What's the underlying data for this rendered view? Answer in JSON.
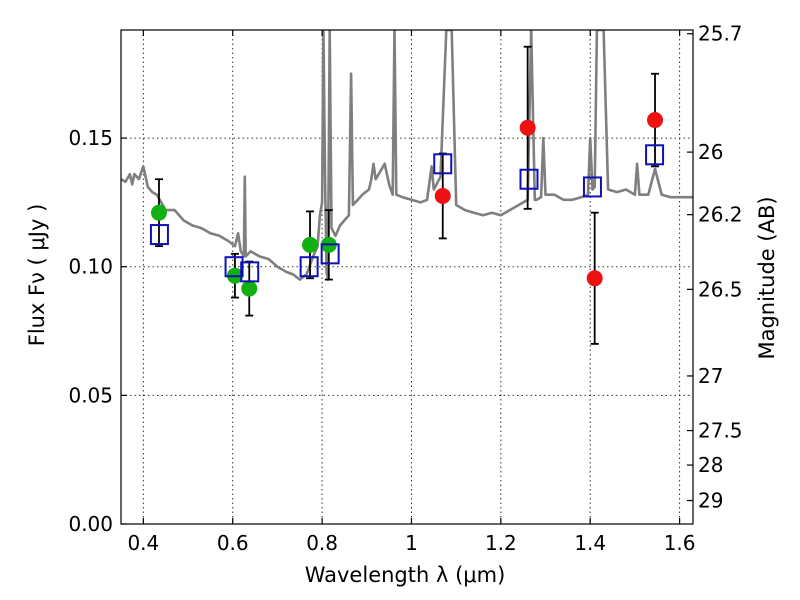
{
  "chart_data": {
    "type": "scatter",
    "x_axis": {
      "label": "Wavelength  λ (μm)",
      "range": [
        0.35,
        1.63
      ],
      "ticks": [
        0.4,
        0.6,
        0.8,
        1.0,
        1.2,
        1.4,
        1.6
      ],
      "tick_labels": [
        "0.4",
        "0.6",
        "0.8",
        "1",
        "1.2",
        "1.4",
        "1.6"
      ]
    },
    "y_axis": {
      "label": "Flux  Fν (  μJy )",
      "range": [
        0.0,
        0.192
      ],
      "ticks": [
        0.0,
        0.05,
        0.1,
        0.15
      ],
      "tick_labels": [
        "0.00",
        "0.05",
        "0.10",
        "0.15"
      ]
    },
    "y_axis_right": {
      "label": "Magnitude (AB)",
      "ticks": [
        25.7,
        26,
        26.2,
        26.5,
        27,
        27.5,
        28,
        29
      ],
      "tick_labels": [
        "25.7",
        "26",
        "26.2",
        "26.5",
        "27",
        "27.5",
        "28",
        "29"
      ]
    },
    "grid": true,
    "series": [
      {
        "kind": "line",
        "color": "#7f7f7f",
        "points": [
          [
            0.35,
            0.134
          ],
          [
            0.36,
            0.133
          ],
          [
            0.37,
            0.136
          ],
          [
            0.375,
            0.132
          ],
          [
            0.38,
            0.136
          ],
          [
            0.39,
            0.134
          ],
          [
            0.4,
            0.139
          ],
          [
            0.41,
            0.131
          ],
          [
            0.42,
            0.129
          ],
          [
            0.43,
            0.128
          ],
          [
            0.44,
            0.125
          ],
          [
            0.45,
            0.122
          ],
          [
            0.47,
            0.122
          ],
          [
            0.49,
            0.118
          ],
          [
            0.51,
            0.116
          ],
          [
            0.53,
            0.115
          ],
          [
            0.55,
            0.113
          ],
          [
            0.57,
            0.112
          ],
          [
            0.59,
            0.11
          ],
          [
            0.605,
            0.108
          ],
          [
            0.612,
            0.113
          ],
          [
            0.618,
            0.106
          ],
          [
            0.625,
            0.104
          ],
          [
            0.627,
            0.135
          ],
          [
            0.629,
            0.104
          ],
          [
            0.64,
            0.106
          ],
          [
            0.66,
            0.104
          ],
          [
            0.68,
            0.103
          ],
          [
            0.7,
            0.1
          ],
          [
            0.72,
            0.098
          ],
          [
            0.735,
            0.097
          ],
          [
            0.75,
            0.095
          ],
          [
            0.765,
            0.097
          ],
          [
            0.78,
            0.104
          ],
          [
            0.79,
            0.108
          ],
          [
            0.795,
            0.12
          ],
          [
            0.8,
            0.125
          ],
          [
            0.803,
            0.192
          ],
          [
            0.807,
            0.13
          ],
          [
            0.81,
            0.098
          ],
          [
            0.813,
            0.095
          ],
          [
            0.817,
            0.192
          ],
          [
            0.821,
            0.115
          ],
          [
            0.83,
            0.112
          ],
          [
            0.84,
            0.116
          ],
          [
            0.85,
            0.118
          ],
          [
            0.86,
            0.12
          ],
          [
            0.865,
            0.175
          ],
          [
            0.869,
            0.124
          ],
          [
            0.88,
            0.126
          ],
          [
            0.89,
            0.128
          ],
          [
            0.905,
            0.13
          ],
          [
            0.91,
            0.134
          ],
          [
            0.915,
            0.14
          ],
          [
            0.92,
            0.134
          ],
          [
            0.93,
            0.137
          ],
          [
            0.94,
            0.14
          ],
          [
            0.95,
            0.132
          ],
          [
            0.958,
            0.128
          ],
          [
            0.962,
            0.192
          ],
          [
            0.966,
            0.128
          ],
          [
            0.98,
            0.127
          ],
          [
            1.0,
            0.126
          ],
          [
            1.02,
            0.125
          ],
          [
            1.035,
            0.126
          ],
          [
            1.045,
            0.139
          ],
          [
            1.05,
            0.13
          ],
          [
            1.065,
            0.135
          ],
          [
            1.078,
            0.192
          ],
          [
            1.09,
            0.192
          ],
          [
            1.1,
            0.124
          ],
          [
            1.12,
            0.122
          ],
          [
            1.14,
            0.121
          ],
          [
            1.16,
            0.12
          ],
          [
            1.18,
            0.121
          ],
          [
            1.2,
            0.12
          ],
          [
            1.22,
            0.122
          ],
          [
            1.24,
            0.124
          ],
          [
            1.26,
            0.126
          ],
          [
            1.268,
            0.192
          ],
          [
            1.276,
            0.126
          ],
          [
            1.28,
            0.126
          ],
          [
            1.29,
            0.127
          ],
          [
            1.295,
            0.15
          ],
          [
            1.3,
            0.128
          ],
          [
            1.32,
            0.128
          ],
          [
            1.34,
            0.126
          ],
          [
            1.36,
            0.126
          ],
          [
            1.38,
            0.127
          ],
          [
            1.395,
            0.128
          ],
          [
            1.4,
            0.15
          ],
          [
            1.405,
            0.13
          ],
          [
            1.41,
            0.131
          ],
          [
            1.415,
            0.192
          ],
          [
            1.43,
            0.192
          ],
          [
            1.44,
            0.13
          ],
          [
            1.46,
            0.129
          ],
          [
            1.48,
            0.13
          ],
          [
            1.5,
            0.128
          ],
          [
            1.505,
            0.14
          ],
          [
            1.51,
            0.128
          ],
          [
            1.52,
            0.128
          ],
          [
            1.53,
            0.128
          ],
          [
            1.545,
            0.138
          ],
          [
            1.56,
            0.128
          ],
          [
            1.58,
            0.127
          ],
          [
            1.6,
            0.127
          ],
          [
            1.63,
            0.127
          ]
        ]
      },
      {
        "kind": "points",
        "marker": "circle",
        "color": "#10b010",
        "points": [
          {
            "x": 0.435,
            "y": 0.121,
            "err": 0.013
          },
          {
            "x": 0.605,
            "y": 0.0965,
            "err": 0.0085
          },
          {
            "x": 0.637,
            "y": 0.0915,
            "err": 0.0105
          },
          {
            "x": 0.773,
            "y": 0.1085,
            "err": 0.013
          },
          {
            "x": 0.815,
            "y": 0.1085,
            "err": 0.0135
          }
        ]
      },
      {
        "kind": "points",
        "marker": "circle",
        "color": "#ee1111",
        "points": [
          {
            "x": 1.07,
            "y": 0.1275,
            "err": 0.0165
          },
          {
            "x": 1.26,
            "y": 0.154,
            "err": 0.0315
          },
          {
            "x": 1.41,
            "y": 0.0955,
            "err": 0.0255
          },
          {
            "x": 1.545,
            "y": 0.157,
            "err": 0.018
          }
        ]
      },
      {
        "kind": "points",
        "marker": "open-square",
        "color": "#1010bb",
        "points": [
          {
            "x": 0.436,
            "y": 0.1125
          },
          {
            "x": 0.603,
            "y": 0.1
          },
          {
            "x": 0.638,
            "y": 0.098
          },
          {
            "x": 0.771,
            "y": 0.1
          },
          {
            "x": 0.818,
            "y": 0.105
          },
          {
            "x": 1.07,
            "y": 0.14
          },
          {
            "x": 1.263,
            "y": 0.134
          },
          {
            "x": 1.405,
            "y": 0.131
          },
          {
            "x": 1.544,
            "y": 0.1435
          }
        ]
      }
    ]
  }
}
